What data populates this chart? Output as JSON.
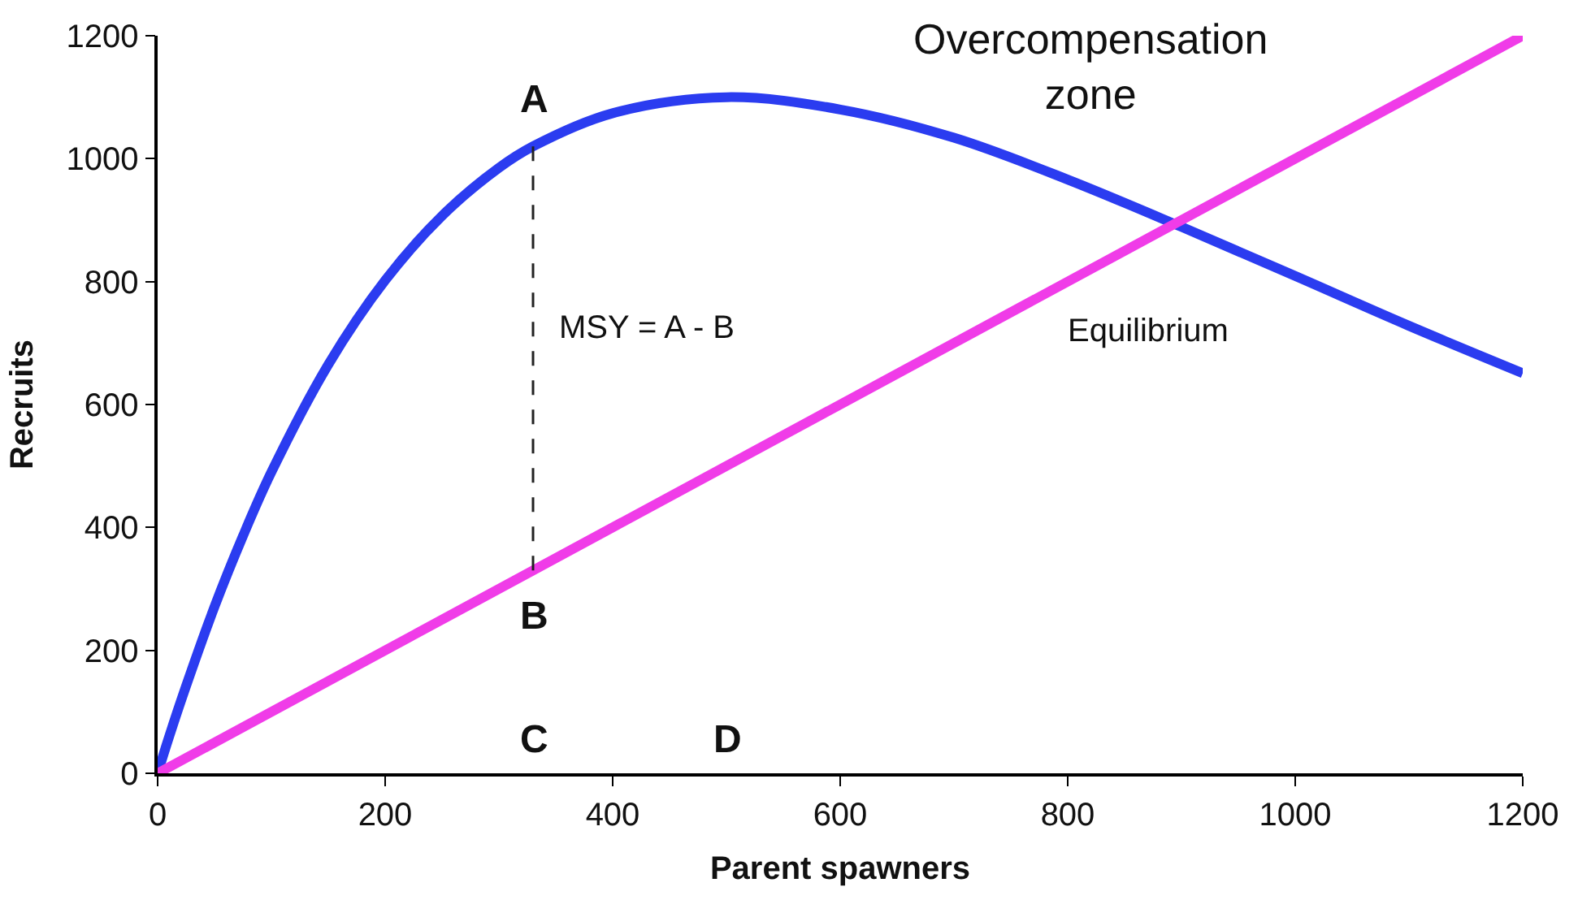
{
  "chart_data": {
    "type": "line",
    "xlabel": "Parent spawners",
    "ylabel": "Recruits",
    "xlim": [
      0,
      1200
    ],
    "ylim": [
      0,
      1200
    ],
    "xticks": [
      0,
      200,
      400,
      600,
      800,
      1000,
      1200
    ],
    "yticks": [
      0,
      200,
      400,
      600,
      800,
      1000,
      1200
    ],
    "marker": "none",
    "series": [
      {
        "color": "#2b3cf0",
        "x": [
          0,
          10,
          25,
          50,
          75,
          100,
          150,
          200,
          250,
          300,
          330,
          400,
          500,
          600,
          700,
          800,
          900,
          1000,
          1100,
          1200
        ],
        "values": [
          0,
          59,
          142,
          271,
          386,
          490,
          665,
          802,
          907,
          985,
          1020,
          1074,
          1100,
          1080,
          1034,
          966,
          889,
          809,
          728,
          651
        ]
      },
      {
        "color": "#f03ce8",
        "x": [
          0,
          1200
        ],
        "values": [
          0,
          1200
        ]
      },
      {
        "color": "#222222",
        "x": [
          330,
          330
        ],
        "values": [
          330,
          1020
        ],
        "line_style": "dashed"
      }
    ],
    "annotations": [
      "A",
      "B",
      "C",
      "D",
      "Overcompensation zone",
      "Equilibrium",
      "MSY = A - B"
    ]
  }
}
